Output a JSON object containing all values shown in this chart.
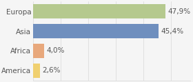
{
  "categories": [
    "Europa",
    "Asia",
    "Africa",
    "America"
  ],
  "values": [
    47.9,
    45.4,
    4.0,
    2.6
  ],
  "labels": [
    "47,9%",
    "45,4%",
    "4,0%",
    "2,6%"
  ],
  "bar_colors": [
    "#b5c98e",
    "#6f8fbe",
    "#e8a87c",
    "#f0d070"
  ],
  "background_color": "#f5f5f5",
  "xlim": [
    0,
    57
  ],
  "bar_height": 0.7,
  "label_fontsize": 7.5,
  "category_fontsize": 7.5,
  "grid_ticks": [
    0,
    10,
    20,
    30,
    40,
    50
  ],
  "grid_color": "#d8d8d8",
  "text_color": "#555555"
}
